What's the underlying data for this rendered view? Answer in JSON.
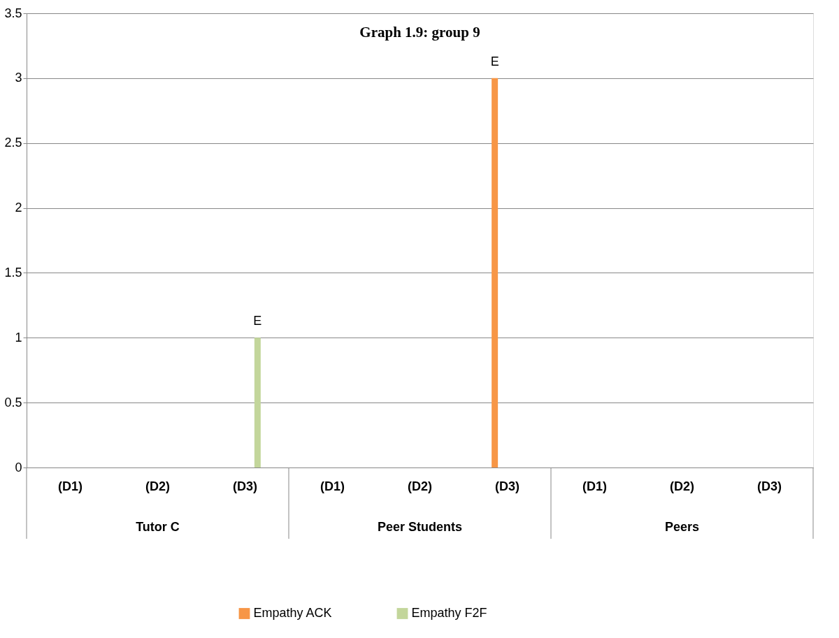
{
  "chart_data": {
    "type": "bar",
    "title": "Graph 1.9: group 9",
    "categories": [
      "(D1)",
      "(D2)",
      "(D3)",
      "(D1)",
      "(D2)",
      "(D3)",
      "(D1)",
      "(D2)",
      "(D3)"
    ],
    "annotations": [
      "Tutor C",
      "Peer Students",
      "Peers"
    ],
    "series": [
      {
        "name": "Empathy ACK",
        "color": "#f79646",
        "values": [
          null,
          null,
          null,
          null,
          null,
          3,
          null,
          null,
          null
        ],
        "value_labels": [
          null,
          null,
          null,
          null,
          null,
          "E",
          null,
          null,
          null
        ]
      },
      {
        "name": "Empathy F2F",
        "color": "#c3d69b",
        "values": [
          null,
          null,
          1,
          null,
          null,
          null,
          null,
          null,
          null
        ],
        "value_labels": [
          null,
          null,
          "E",
          null,
          null,
          null,
          null,
          null,
          null
        ]
      }
    ],
    "ylim": [
      0,
      3.5
    ],
    "yticks": [
      0,
      0.5,
      1,
      1.5,
      2,
      2.5,
      3,
      3.5
    ],
    "grid": "y",
    "legend": "bottom"
  }
}
